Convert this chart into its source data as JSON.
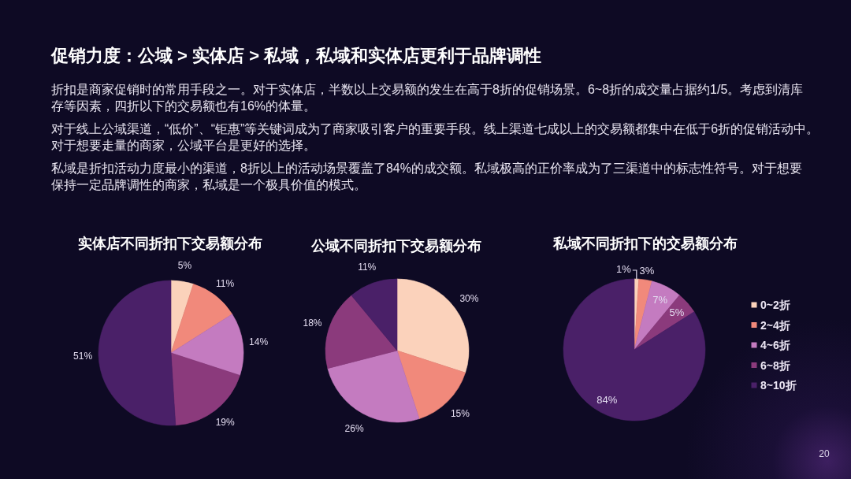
{
  "chart_data": [
    {
      "type": "other",
      "title": "促销力度：公域 > 实体店 > 私域，私域和实体店更利于品牌调性",
      "annotations": [
        "折扣是商家促销时的常用手段之一。对于实体店，半数以上交易额的发生在高于8折的促销场景。6~8折的成交量占据约1/5。考虑到清库存等因素，四折以下的交易额也有16%的体量。",
        "对于线上公域渠道，“低价”、“钜惠”等关键词成为了商家吸引客户的重要手段。线上渠道七成以上的交易额都集中在低于6折的促销活动中。对于想要走量的商家，公域平台是更好的选择。",
        "私域是折扣活动力度最小的渠道，8折以上的活动场景覆盖了84%的成交额。私域极高的正价率成为了三渠道中的标志性符号。对于想要保持一定品牌调性的商家，私域是一个极具价值的模式。",
        "20"
      ]
    },
    {
      "type": "pie",
      "title": "实体店不同折扣下交易额分布",
      "categories": [
        null,
        null,
        null,
        null,
        null
      ],
      "values": [
        5,
        11,
        14,
        19,
        51
      ],
      "colors": [
        "#fbd2bb",
        "#f1897b",
        "#c47bc0",
        "#8b3a7c",
        "#4a2068"
      ],
      "value_labels": [
        "5%",
        "11%",
        "14%",
        "19%",
        "51%"
      ]
    },
    {
      "type": "pie",
      "title": "公域不同折扣下交易额分布",
      "categories": [
        null,
        null,
        null,
        null,
        null
      ],
      "values": [
        30,
        15,
        26,
        18,
        11
      ],
      "colors": [
        "#fbd2bb",
        "#f1897b",
        "#c47bc0",
        "#8b3a7c",
        "#4a2068"
      ],
      "value_labels": [
        "30%",
        "15%",
        "26%",
        "18%",
        "11%"
      ]
    },
    {
      "type": "pie",
      "title": "私域不同折扣下的交易额分布",
      "categories": [
        "0~2折",
        "2~4折",
        "4~6折",
        "6~8折",
        "8~10折"
      ],
      "values": [
        1,
        3,
        7,
        5,
        84
      ],
      "colors": [
        "#fbd2bb",
        "#f1897b",
        "#c47bc0",
        "#8b3a7c",
        "#4a2068"
      ],
      "value_labels": [
        "1%",
        "3%",
        "7%",
        "5%",
        "84%"
      ],
      "legend": "right"
    }
  ]
}
